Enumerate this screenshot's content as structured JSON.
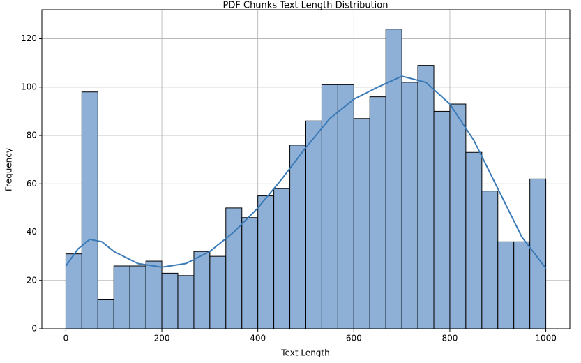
{
  "chart_data": {
    "type": "histogram",
    "title": "PDF Chunks Text Length Distribution",
    "x_label": "Text Length",
    "y_label": "Frequency",
    "bins": [
      0,
      33.3,
      66.7,
      100,
      133.3,
      166.7,
      200,
      233.3,
      266.7,
      300,
      333.3,
      366.7,
      400,
      433.3,
      466.7,
      500,
      533.3,
      566.7,
      600,
      633.3,
      666.7,
      700,
      733.3,
      766.7,
      800,
      833.3,
      866.7,
      900,
      933.3,
      966.7,
      1000
    ],
    "values": [
      31,
      98,
      12,
      26,
      26,
      28,
      23,
      22,
      32,
      30,
      50,
      46,
      55,
      58,
      76,
      86,
      101,
      101,
      87,
      96,
      124,
      102,
      109,
      90,
      93,
      73,
      57,
      36,
      36,
      62
    ],
    "color": "#8fb0d6",
    "kde": {
      "color": "#3a7ab7",
      "x": [
        0,
        25,
        50,
        75,
        100,
        150,
        200,
        250,
        300,
        350,
        400,
        450,
        500,
        550,
        600,
        650,
        700,
        750,
        800,
        850,
        900,
        950,
        1000
      ],
      "y": [
        26,
        33,
        37,
        36,
        32,
        27,
        25.5,
        27,
        32,
        40,
        50,
        62,
        75,
        87,
        95,
        100,
        104.5,
        102,
        93,
        78,
        58,
        38,
        25
      ]
    },
    "xlim": [
      -50,
      1050
    ],
    "ylim": [
      0,
      132
    ],
    "xticks": [
      0,
      200,
      400,
      600,
      800,
      1000
    ],
    "yticks": [
      0,
      20,
      40,
      60,
      80,
      100,
      120
    ],
    "grid": true
  }
}
